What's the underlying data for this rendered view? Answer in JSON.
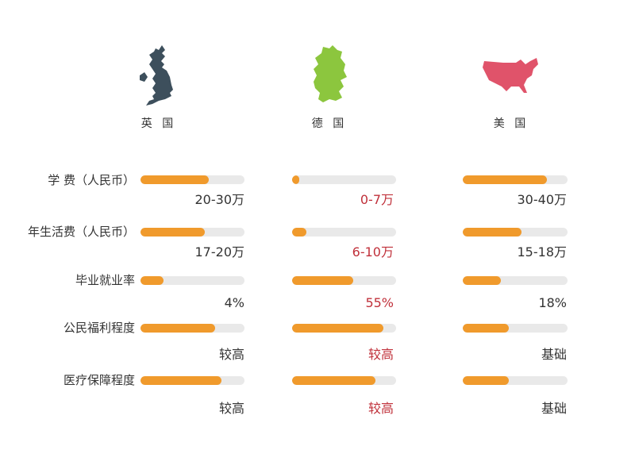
{
  "colors": {
    "bar_fill": "#f09a2c",
    "bar_track": "#e9e9e9",
    "highlight_text": "#c0303a",
    "uk_map": "#3d4f5c",
    "germany_map": "#8cc63e",
    "usa_map": "#e0536a"
  },
  "countries": [
    {
      "name": "英 国",
      "icon": "uk-map-icon"
    },
    {
      "name": "德 国",
      "icon": "germany-map-icon"
    },
    {
      "name": "美 国",
      "icon": "usa-map-icon"
    }
  ],
  "rows": [
    {
      "label": "学 费（人民币）"
    },
    {
      "label": "年生活费（人民币）"
    },
    {
      "label": "毕业就业率"
    },
    {
      "label": "公民福利程度"
    },
    {
      "label": "医疗保障程度"
    }
  ],
  "values": [
    [
      "20-30万",
      "0-7万",
      "30-40万"
    ],
    [
      "17-20万",
      "6-10万",
      "15-18万"
    ],
    [
      "4%",
      "55%",
      "18%"
    ],
    [
      "较高",
      "较高",
      "基础"
    ],
    [
      "较高",
      "较高",
      "基础"
    ]
  ],
  "chart_data": {
    "type": "bar",
    "categories": [
      "学 费（人民币）",
      "年生活费（人民币）",
      "毕业就业率",
      "公民福利程度",
      "医疗保障程度"
    ],
    "series": [
      {
        "name": "英 国",
        "values": [
          0.66,
          0.62,
          0.22,
          0.72,
          0.78
        ],
        "labels": [
          "20-30万",
          "17-20万",
          "4%",
          "较高",
          "较高"
        ]
      },
      {
        "name": "德 国",
        "values": [
          0.07,
          0.14,
          0.59,
          0.88,
          0.8
        ],
        "labels": [
          "0-7万",
          "6-10万",
          "55%",
          "较高",
          "较高"
        ]
      },
      {
        "name": "美 国",
        "values": [
          0.8,
          0.56,
          0.36,
          0.44,
          0.44
        ],
        "labels": [
          "30-40万",
          "15-18万",
          "18%",
          "基础",
          "基础"
        ]
      }
    ],
    "value_unit": "fraction of bar filled"
  }
}
